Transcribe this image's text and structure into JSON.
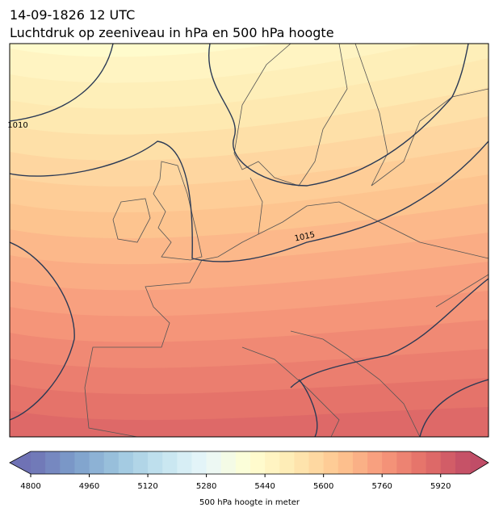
{
  "title": {
    "line1": "14-09-1826 12 UTC",
    "line2": "Luchtdruk op zeeniveau in hPa en 500 hPa hoogte"
  },
  "map": {
    "isobar_labels": [
      "1010",
      "1015"
    ]
  },
  "colorbar": {
    "label": "500 hPa hoogte in meter",
    "range": [
      4800,
      6000
    ],
    "ticks": [
      4800,
      4960,
      5120,
      5280,
      5440,
      5600,
      5760,
      5920
    ],
    "colormap": "RdYlBu_r"
  }
}
